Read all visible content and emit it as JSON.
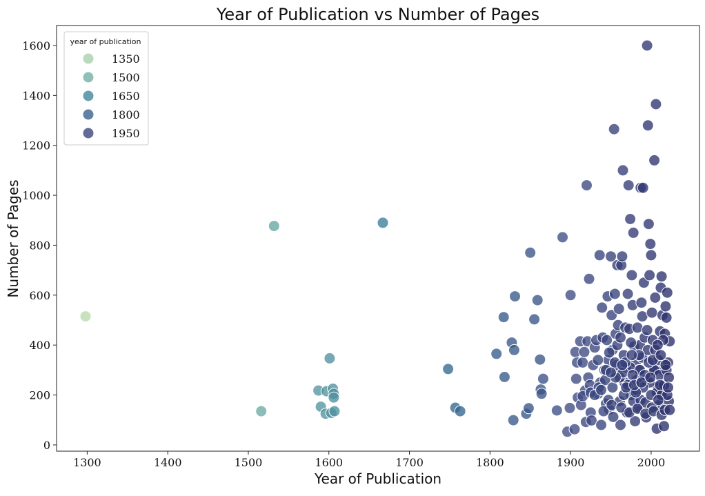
{
  "chart_data": {
    "type": "scatter",
    "title": "Year of Publication vs Number of Pages",
    "xlabel": "Year of Publication",
    "ylabel": "Number of Pages",
    "xlim": [
      1262,
      2060
    ],
    "ylim": [
      -25,
      1680
    ],
    "xticks": [
      1300,
      1400,
      1500,
      1600,
      1700,
      1800,
      1900,
      2000
    ],
    "yticks": [
      0,
      200,
      400,
      600,
      800,
      1000,
      1200,
      1400,
      1600
    ],
    "grid": false,
    "legend": {
      "title": "year of publication",
      "placement": "top-left",
      "entries": [
        {
          "label": "1350",
          "value": 1350
        },
        {
          "label": "1500",
          "value": 1500
        },
        {
          "label": "1650",
          "value": 1650
        },
        {
          "label": "1800",
          "value": 1800
        },
        {
          "label": "1950",
          "value": 1950
        }
      ]
    },
    "color_scale": {
      "domain": [
        1300,
        2025
      ],
      "stops": [
        "#b6dbab",
        "#8cc2a5",
        "#62a3a3",
        "#3b7f9a",
        "#33608d",
        "#3e4c83",
        "#2b2f6b"
      ]
    },
    "points": [
      [
        1298,
        515
      ],
      [
        1516,
        135
      ],
      [
        1532,
        877
      ],
      [
        1587,
        218
      ],
      [
        1590,
        153
      ],
      [
        1596,
        125
      ],
      [
        1597,
        215
      ],
      [
        1601,
        347
      ],
      [
        1603,
        128
      ],
      [
        1605,
        225
      ],
      [
        1606,
        205
      ],
      [
        1606,
        190
      ],
      [
        1607,
        135
      ],
      [
        1667,
        890
      ],
      [
        1748,
        304
      ],
      [
        1757,
        149
      ],
      [
        1763,
        135
      ],
      [
        1808,
        365
      ],
      [
        1817,
        512
      ],
      [
        1818,
        272
      ],
      [
        1827,
        410
      ],
      [
        1829,
        99
      ],
      [
        1830,
        380
      ],
      [
        1831,
        595
      ],
      [
        1845,
        125
      ],
      [
        1848,
        147
      ],
      [
        1850,
        770
      ],
      [
        1855,
        503
      ],
      [
        1859,
        580
      ],
      [
        1862,
        342
      ],
      [
        1863,
        222
      ],
      [
        1864,
        205
      ],
      [
        1866,
        265
      ],
      [
        1883,
        138
      ],
      [
        1890,
        832
      ],
      [
        1896,
        53
      ],
      [
        1899,
        148
      ],
      [
        1900,
        600
      ],
      [
        1905,
        63
      ],
      [
        1906,
        372
      ],
      [
        1907,
        265
      ],
      [
        1908,
        330
      ],
      [
        1909,
        190
      ],
      [
        1912,
        415
      ],
      [
        1913,
        160
      ],
      [
        1915,
        330
      ],
      [
        1917,
        372
      ],
      [
        1918,
        218
      ],
      [
        1919,
        92
      ],
      [
        1920,
        1040
      ],
      [
        1921,
        415
      ],
      [
        1922,
        270
      ],
      [
        1923,
        665
      ],
      [
        1924,
        240
      ],
      [
        1925,
        130
      ],
      [
        1926,
        98
      ],
      [
        1928,
        320
      ],
      [
        1930,
        390
      ],
      [
        1932,
        420
      ],
      [
        1934,
        205
      ],
      [
        1936,
        760
      ],
      [
        1937,
        250
      ],
      [
        1938,
        80
      ],
      [
        1939,
        550
      ],
      [
        1940,
        430
      ],
      [
        1942,
        300
      ],
      [
        1944,
        165
      ],
      [
        1946,
        595
      ],
      [
        1947,
        340
      ],
      [
        1948,
        142
      ],
      [
        1950,
        755
      ],
      [
        1951,
        520
      ],
      [
        1952,
        380
      ],
      [
        1953,
        112
      ],
      [
        1954,
        1265
      ],
      [
        1955,
        605
      ],
      [
        1956,
        445
      ],
      [
        1957,
        290
      ],
      [
        1958,
        720
      ],
      [
        1959,
        480
      ],
      [
        1960,
        545
      ],
      [
        1961,
        175
      ],
      [
        1962,
        80
      ],
      [
        1963,
        720
      ],
      [
        1964,
        755
      ],
      [
        1965,
        1100
      ],
      [
        1966,
        360
      ],
      [
        1967,
        250
      ],
      [
        1968,
        470
      ],
      [
        1969,
        310
      ],
      [
        1970,
        130
      ],
      [
        1971,
        605
      ],
      [
        1972,
        1040
      ],
      [
        1973,
        465
      ],
      [
        1974,
        905
      ],
      [
        1975,
        200
      ],
      [
        1976,
        680
      ],
      [
        1977,
        560
      ],
      [
        1978,
        850
      ],
      [
        1979,
        395
      ],
      [
        1980,
        95
      ],
      [
        1981,
        330
      ],
      [
        1982,
        220
      ],
      [
        1983,
        470
      ],
      [
        1984,
        150
      ],
      [
        1985,
        300
      ],
      [
        1986,
        400
      ],
      [
        1987,
        1030
      ],
      [
        1988,
        570
      ],
      [
        1989,
        515
      ],
      [
        1990,
        1030
      ],
      [
        1991,
        650
      ],
      [
        1992,
        430
      ],
      [
        1993,
        260
      ],
      [
        1994,
        110
      ],
      [
        1995,
        1600
      ],
      [
        1996,
        1280
      ],
      [
        1997,
        885
      ],
      [
        1998,
        680
      ],
      [
        1999,
        805
      ],
      [
        2000,
        760
      ],
      [
        2001,
        530
      ],
      [
        2002,
        420
      ],
      [
        2003,
        300
      ],
      [
        2004,
        1140
      ],
      [
        2005,
        590
      ],
      [
        2006,
        1365
      ],
      [
        2007,
        65
      ],
      [
        2008,
        230
      ],
      [
        2009,
        340
      ],
      [
        2010,
        160
      ],
      [
        2011,
        455
      ],
      [
        2012,
        630
      ],
      [
        2013,
        675
      ],
      [
        2014,
        520
      ],
      [
        2015,
        300
      ],
      [
        2016,
        75
      ],
      [
        2017,
        445
      ],
      [
        2018,
        555
      ],
      [
        2019,
        510
      ],
      [
        2020,
        610
      ],
      [
        2021,
        330
      ],
      [
        2022,
        175
      ],
      [
        2023,
        415
      ],
      [
        1915,
        195
      ],
      [
        1925,
        210
      ],
      [
        1935,
        230
      ],
      [
        1943,
        260
      ],
      [
        1947,
        180
      ],
      [
        1952,
        230
      ],
      [
        1957,
        320
      ],
      [
        1961,
        270
      ],
      [
        1966,
        200
      ],
      [
        1971,
        240
      ],
      [
        1974,
        310
      ],
      [
        1978,
        175
      ],
      [
        1982,
        260
      ],
      [
        1987,
        180
      ],
      [
        1989,
        350
      ],
      [
        1993,
        170
      ],
      [
        1996,
        380
      ],
      [
        1998,
        250
      ],
      [
        2001,
        150
      ],
      [
        2004,
        300
      ],
      [
        2007,
        210
      ],
      [
        2010,
        280
      ],
      [
        2013,
        200
      ],
      [
        2016,
        240
      ],
      [
        2019,
        300
      ],
      [
        2022,
        270
      ],
      [
        1945,
        420
      ],
      [
        1955,
        330
      ],
      [
        1965,
        290
      ],
      [
        1975,
        410
      ],
      [
        1985,
        360
      ],
      [
        1995,
        460
      ],
      [
        2005,
        380
      ],
      [
        2015,
        420
      ],
      [
        1941,
        135
      ],
      [
        1951,
        160
      ],
      [
        1963,
        150
      ],
      [
        1973,
        130
      ],
      [
        1983,
        145
      ],
      [
        1993,
        125
      ],
      [
        2003,
        135
      ],
      [
        2013,
        120
      ],
      [
        1958,
        400
      ],
      [
        1968,
        330
      ],
      [
        1976,
        360
      ],
      [
        1986,
        300
      ],
      [
        1997,
        330
      ],
      [
        2008,
        400
      ],
      [
        2018,
        320
      ],
      [
        1930,
        200
      ],
      [
        1934,
        340
      ],
      [
        1948,
        370
      ],
      [
        1962,
        430
      ],
      [
        1977,
        280
      ],
      [
        1990,
        230
      ],
      [
        2000,
        200
      ],
      [
        2011,
        240
      ],
      [
        2020,
        200
      ],
      [
        1944,
        300
      ],
      [
        1956,
        270
      ],
      [
        1969,
        230
      ],
      [
        1981,
        210
      ],
      [
        1992,
        280
      ],
      [
        2002,
        340
      ],
      [
        2012,
        360
      ],
      [
        2021,
        230
      ],
      [
        1938,
        220
      ],
      [
        1950,
        290
      ],
      [
        1964,
        320
      ],
      [
        1979,
        240
      ],
      [
        1988,
        250
      ],
      [
        1999,
        270
      ],
      [
        2009,
        180
      ],
      [
        2017,
        140
      ],
      [
        2023,
        140
      ]
    ]
  }
}
